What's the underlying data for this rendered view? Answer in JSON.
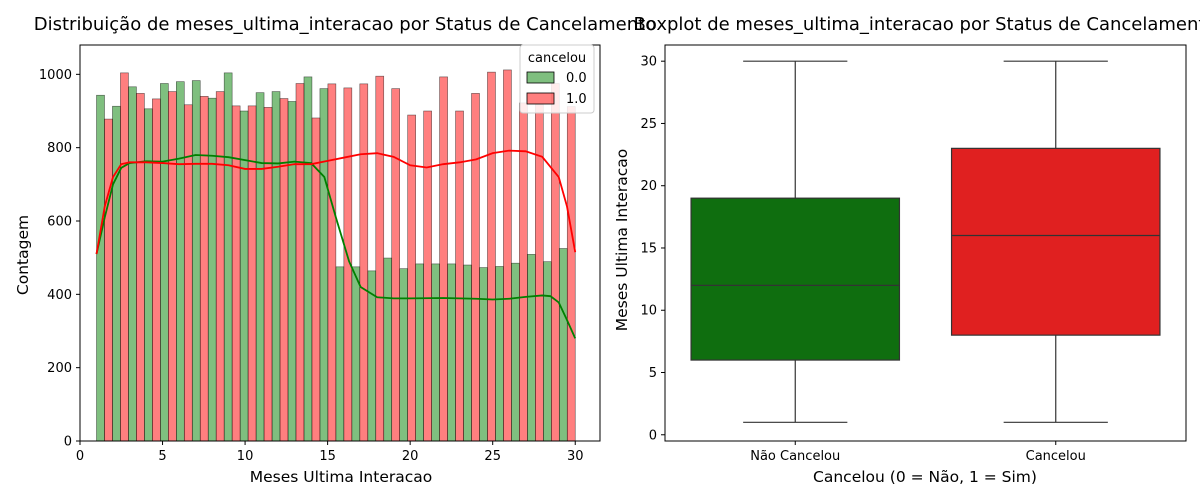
{
  "chart_data": [
    {
      "type": "bar",
      "title": "Distribuição de meses_ultima_interacao por Status de Cancelamento",
      "xlabel": "Meses Ultima Interacao",
      "ylabel": "Contagem",
      "xlim": [
        0,
        31.5
      ],
      "ylim": [
        0,
        1080
      ],
      "xticks": [
        "0",
        "5",
        "10",
        "15",
        "20",
        "25",
        "30"
      ],
      "yticks": [
        "0",
        "200",
        "400",
        "600",
        "800",
        "1000"
      ],
      "legend": {
        "title": "cancelou",
        "position": "top-right"
      },
      "series": [
        {
          "name": "0.0",
          "color": "#008000",
          "bins": [
            {
              "x": 1,
              "value": 943
            },
            {
              "x": 2,
              "value": 913
            },
            {
              "x": 3,
              "value": 966
            },
            {
              "x": 4,
              "value": 906
            },
            {
              "x": 5,
              "value": 975
            },
            {
              "x": 7,
              "value": 980
            },
            {
              "x": 8,
              "value": 983
            },
            {
              "x": 9,
              "value": 935
            },
            {
              "x": 10,
              "value": 1004
            },
            {
              "x": 12,
              "value": 900
            },
            {
              "x": 13,
              "value": 950
            },
            {
              "x": 14,
              "value": 953
            },
            {
              "x": 15,
              "value": 926
            },
            {
              "x": 16,
              "value": 993
            },
            {
              "x": 17,
              "value": 961
            },
            {
              "x": 18,
              "value": 475
            },
            {
              "x": 19,
              "value": 475
            },
            {
              "x": 20,
              "value": 464
            },
            {
              "x": 21,
              "value": 499
            },
            {
              "x": 22,
              "value": 470
            },
            {
              "x": 23,
              "value": 483
            },
            {
              "x": 24,
              "value": 483
            },
            {
              "x": 25,
              "value": 483
            },
            {
              "x": 26,
              "value": 480
            },
            {
              "x": 27,
              "value": 473
            },
            {
              "x": 28,
              "value": 476
            },
            {
              "x": 29,
              "value": 485
            },
            {
              "x": 30,
              "value": 509
            },
            {
              "x": 31,
              "value": 489
            },
            {
              "x": 32,
              "value": 525
            }
          ],
          "kde": [
            [
              1,
              510
            ],
            [
              1.5,
              610
            ],
            [
              2,
              700
            ],
            [
              2.5,
              745
            ],
            [
              3,
              758
            ],
            [
              4,
              763
            ],
            [
              5,
              762
            ],
            [
              6,
              770
            ],
            [
              7,
              780
            ],
            [
              8,
              778
            ],
            [
              9,
              774
            ],
            [
              10,
              766
            ],
            [
              11,
              758
            ],
            [
              12,
              757
            ],
            [
              13,
              762
            ],
            [
              14,
              758
            ],
            [
              14.8,
              720
            ],
            [
              15.5,
              610
            ],
            [
              16.3,
              490
            ],
            [
              17,
              420
            ],
            [
              18,
              392
            ],
            [
              19,
              389
            ],
            [
              20,
              389
            ],
            [
              22,
              390
            ],
            [
              23,
              389
            ],
            [
              24,
              388
            ],
            [
              25,
              386
            ],
            [
              26,
              388
            ],
            [
              27,
              393
            ],
            [
              28,
              397
            ],
            [
              28.5,
              395
            ],
            [
              29,
              378
            ],
            [
              29.5,
              330
            ],
            [
              30,
              280
            ]
          ]
        },
        {
          "name": "1.0",
          "color": "#ff0000",
          "bins": [
            {
              "x": 1,
              "value": 878
            },
            {
              "x": 2,
              "value": 1004
            },
            {
              "x": 3,
              "value": 948
            },
            {
              "x": 4,
              "value": 933
            },
            {
              "x": 5,
              "value": 953
            },
            {
              "x": 7,
              "value": 917
            },
            {
              "x": 8,
              "value": 940
            },
            {
              "x": 9,
              "value": 953
            },
            {
              "x": 10,
              "value": 914
            },
            {
              "x": 12,
              "value": 914
            },
            {
              "x": 13,
              "value": 910
            },
            {
              "x": 14,
              "value": 934
            },
            {
              "x": 15,
              "value": 975
            },
            {
              "x": 16,
              "value": 881
            },
            {
              "x": 17,
              "value": 974
            },
            {
              "x": 18,
              "value": 963
            },
            {
              "x": 19,
              "value": 974
            },
            {
              "x": 20,
              "value": 995
            },
            {
              "x": 21,
              "value": 961
            },
            {
              "x": 22,
              "value": 889
            },
            {
              "x": 23,
              "value": 900
            },
            {
              "x": 24,
              "value": 993
            },
            {
              "x": 25,
              "value": 900
            },
            {
              "x": 26,
              "value": 948
            },
            {
              "x": 27,
              "value": 1006
            },
            {
              "x": 28,
              "value": 1012
            },
            {
              "x": 29,
              "value": 922
            },
            {
              "x": 30,
              "value": 918
            },
            {
              "x": 31,
              "value": 975
            },
            {
              "x": 32,
              "value": 912
            }
          ],
          "kde": [
            [
              1,
              510
            ],
            [
              1.5,
              640
            ],
            [
              2,
              720
            ],
            [
              2.5,
              755
            ],
            [
              3,
              760
            ],
            [
              4,
              760
            ],
            [
              5,
              758
            ],
            [
              6,
              755
            ],
            [
              7,
              756
            ],
            [
              8,
              756
            ],
            [
              9,
              752
            ],
            [
              10,
              742
            ],
            [
              11,
              742
            ],
            [
              12,
              748
            ],
            [
              13,
              755
            ],
            [
              14,
              755
            ],
            [
              15,
              764
            ],
            [
              16,
              773
            ],
            [
              17,
              782
            ],
            [
              18,
              785
            ],
            [
              19,
              775
            ],
            [
              20,
              752
            ],
            [
              21,
              746
            ],
            [
              22,
              755
            ],
            [
              23,
              760
            ],
            [
              24,
              768
            ],
            [
              25,
              785
            ],
            [
              26,
              792
            ],
            [
              27,
              790
            ],
            [
              28,
              775
            ],
            [
              29,
              720
            ],
            [
              29.5,
              640
            ],
            [
              30,
              515
            ]
          ]
        }
      ]
    },
    {
      "type": "box",
      "title": "Boxplot de meses_ultima_interacao por Status de Cancelamento",
      "xlabel": "Cancelou (0 = Não, 1 = Sim)",
      "ylabel": "Meses Ultima Interacao",
      "ylim": [
        -0.5,
        31.3
      ],
      "yticks": [
        "0",
        "5",
        "10",
        "15",
        "20",
        "25",
        "30"
      ],
      "categories": [
        "Não Cancelou",
        "Cancelou"
      ],
      "boxes": [
        {
          "category": "Não Cancelou",
          "color": "#0f6e0f",
          "min": 1,
          "q1": 6,
          "median": 12,
          "q3": 19,
          "max": 30
        },
        {
          "category": "Cancelou",
          "color": "#e02020",
          "min": 1,
          "q1": 8,
          "median": 16,
          "q3": 23,
          "max": 30
        }
      ]
    }
  ]
}
